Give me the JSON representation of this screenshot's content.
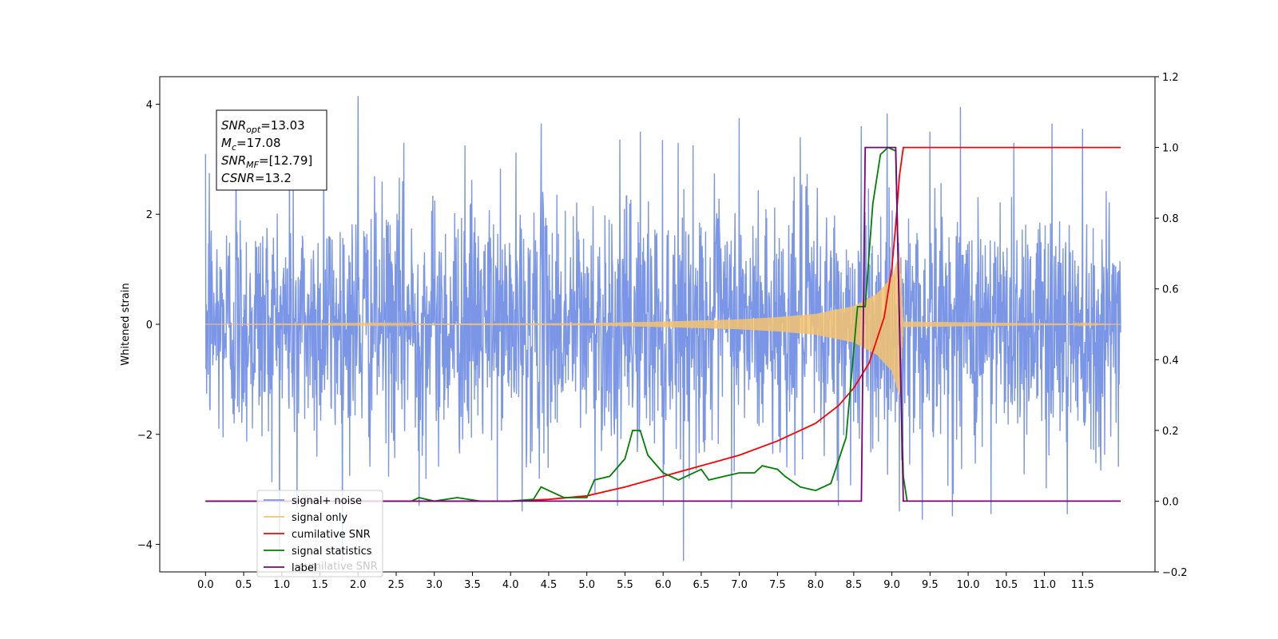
{
  "chart_data": {
    "type": "line",
    "ylabel": "Whitened strain",
    "xlim": [
      -0.6,
      12.45
    ],
    "ylim": [
      -4.5,
      4.5
    ],
    "y2lim": [
      -0.2,
      1.2
    ],
    "x_ticks": [
      0.0,
      0.5,
      1.0,
      1.5,
      2.0,
      2.5,
      3.0,
      3.5,
      4.0,
      4.5,
      5.0,
      5.5,
      6.0,
      6.5,
      7.0,
      7.5,
      8.0,
      8.5,
      9.0,
      9.5,
      10.0,
      10.5,
      11.0,
      11.5
    ],
    "x_tick_labels": [
      "0.0",
      "0.5",
      "1.0",
      "1.5",
      "2.0",
      "2.5",
      "3.0",
      "3.5",
      "4.0",
      "4.5",
      "5.0",
      "5.5",
      "6.0",
      "6.5",
      "7.0",
      "7.5",
      "8.0",
      "8.5",
      "9.0",
      "9.5",
      "10.0",
      "10.5",
      "11.0",
      "11.5"
    ],
    "y_ticks": [
      -4,
      -2,
      0,
      2,
      4
    ],
    "y_tick_labels": [
      "−4",
      "−2",
      "0",
      "2",
      "4"
    ],
    "y2_ticks": [
      -0.2,
      0.0,
      0.2,
      0.4,
      0.6,
      0.8,
      1.0,
      1.2
    ],
    "y2_tick_labels": [
      "−0.2",
      "0.0",
      "0.2",
      "0.4",
      "0.6",
      "0.8",
      "1.0",
      "1.2"
    ],
    "annotation": {
      "lines": [
        {
          "base": "SNR",
          "sub": "opt",
          "rest": "=13.03"
        },
        {
          "base": "M",
          "sub": "c",
          "rest": "=17.08"
        },
        {
          "base": "SNR",
          "sub": "MF",
          "rest": "=[12.79]"
        },
        {
          "base": "CSNR",
          "sub": "",
          "rest": "=13.2"
        }
      ]
    },
    "legend": {
      "placement": "lower-left",
      "entries": [
        {
          "label": "signal+ noise",
          "color": "#7b96e6"
        },
        {
          "label": "signal only",
          "color": "#f5c36f"
        },
        {
          "label": "cumilative SNR",
          "color": "#ff0000"
        },
        {
          "label": "signal statistics",
          "color": "#007f00"
        },
        {
          "label": "label",
          "color": "#7f007f"
        }
      ],
      "ghost_text": "cumilative SNR"
    },
    "series": [
      {
        "name": "signal+ noise",
        "axis": "left",
        "color": "#7b96e6",
        "description_type": "noise",
        "x_range": [
          0.0,
          12.0
        ],
        "typical_amplitude": 1.8,
        "peak_points": [
          [
            0.05,
            2.75
          ],
          [
            0.4,
            3.2
          ],
          [
            1.1,
            3.45
          ],
          [
            1.55,
            3.55
          ],
          [
            2.0,
            4.15
          ],
          [
            2.6,
            3.3
          ],
          [
            3.4,
            3.25
          ],
          [
            4.4,
            3.65
          ],
          [
            5.7,
            3.5
          ],
          [
            6.2,
            3.3
          ],
          [
            7.0,
            3.75
          ],
          [
            7.8,
            3.4
          ],
          [
            8.6,
            3.6
          ],
          [
            9.5,
            3.5
          ],
          [
            9.9,
            3.95
          ],
          [
            10.6,
            3.3
          ],
          [
            11.1,
            3.65
          ],
          [
            11.5,
            3.55
          ],
          [
            1.2,
            -3.35
          ],
          [
            2.8,
            -3.3
          ],
          [
            4.15,
            -3.4
          ],
          [
            5.4,
            -3.3
          ],
          [
            6.0,
            -3.3
          ],
          [
            7.8,
            -4.05
          ],
          [
            8.3,
            -3.3
          ],
          [
            9.4,
            -3.55
          ],
          [
            9.1,
            -3.4
          ],
          [
            10.3,
            -3.45
          ],
          [
            11.3,
            -3.45
          ]
        ]
      },
      {
        "name": "signal only",
        "axis": "left",
        "color": "#f5c36f",
        "description_type": "chirp",
        "x_range": [
          0.0,
          12.0
        ],
        "envelope_x": [
          0.0,
          5.0,
          6.0,
          7.0,
          7.5,
          8.0,
          8.5,
          8.8,
          9.0,
          9.1,
          9.15,
          12.0
        ],
        "envelope_y": [
          0.0,
          0.02,
          0.05,
          0.09,
          0.13,
          0.19,
          0.33,
          0.55,
          0.85,
          1.3,
          0.05,
          0.0
        ]
      },
      {
        "name": "cumilative SNR",
        "axis": "right",
        "color": "#ff0000",
        "x": [
          0.0,
          4.0,
          4.5,
          5.0,
          5.5,
          6.0,
          6.5,
          7.0,
          7.5,
          8.0,
          8.3,
          8.5,
          8.7,
          8.9,
          9.0,
          9.05,
          9.1,
          9.15,
          9.2,
          12.0
        ],
        "values": [
          0.0,
          0.0,
          0.005,
          0.015,
          0.04,
          0.07,
          0.1,
          0.13,
          0.17,
          0.22,
          0.27,
          0.32,
          0.39,
          0.52,
          0.66,
          0.78,
          0.92,
          1.0,
          1.0,
          1.0
        ]
      },
      {
        "name": "signal statistics",
        "axis": "right",
        "color": "#007f00",
        "x": [
          0.0,
          2.7,
          2.8,
          3.0,
          3.3,
          3.6,
          4.0,
          4.3,
          4.4,
          4.5,
          4.7,
          5.0,
          5.1,
          5.3,
          5.5,
          5.6,
          5.7,
          5.8,
          6.0,
          6.2,
          6.5,
          6.6,
          6.8,
          7.0,
          7.2,
          7.3,
          7.5,
          7.6,
          7.8,
          8.0,
          8.2,
          8.4,
          8.55,
          8.65,
          8.75,
          8.85,
          8.95,
          9.05,
          9.1,
          9.15,
          9.2
        ],
        "values": [
          0.0,
          0.0,
          0.01,
          0.0,
          0.01,
          0.0,
          0.0,
          0.005,
          0.04,
          0.03,
          0.01,
          0.01,
          0.06,
          0.07,
          0.12,
          0.2,
          0.2,
          0.13,
          0.08,
          0.06,
          0.09,
          0.06,
          0.07,
          0.08,
          0.08,
          0.1,
          0.09,
          0.07,
          0.04,
          0.03,
          0.05,
          0.18,
          0.55,
          0.55,
          0.84,
          0.98,
          1.0,
          0.99,
          0.5,
          0.07,
          0.0
        ]
      },
      {
        "name": "label",
        "axis": "right",
        "color": "#7f007f",
        "x": [
          0.0,
          8.6,
          8.65,
          9.05,
          9.15,
          12.0
        ],
        "values": [
          0.0,
          0.0,
          1.0,
          1.0,
          0.0,
          0.0
        ]
      }
    ]
  }
}
